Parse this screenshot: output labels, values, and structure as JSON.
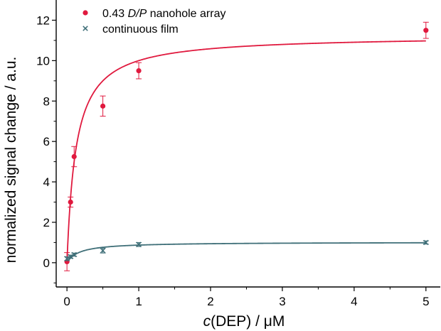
{
  "chart_data": {
    "type": "scatter",
    "title": "",
    "xlabel_prefix": "c",
    "xlabel_suffix": "(DEP) / μM",
    "ylabel": "normalized signal change / a.u.",
    "xlim": [
      -0.15,
      5.2
    ],
    "ylim": [
      -1.2,
      13
    ],
    "xticks": [
      0,
      1,
      2,
      3,
      4,
      5
    ],
    "yticks": [
      0,
      2,
      4,
      6,
      8,
      10,
      12
    ],
    "legend_position": "top-left",
    "series": [
      {
        "name": "nanohole array",
        "name_prefix": "0.43 ",
        "name_italic": "D/P",
        "marker": "circle",
        "color": "#e0193e",
        "x": [
          0,
          0.05,
          0.1,
          0.5,
          1,
          5
        ],
        "y": [
          0.05,
          3.0,
          5.25,
          7.75,
          9.5,
          11.5
        ],
        "err": [
          0.45,
          0.25,
          0.5,
          0.5,
          0.4,
          0.4
        ],
        "fit": {
          "model": "langmuir",
          "ymax": 11.25,
          "k": 0.125
        }
      },
      {
        "name": "continuous film",
        "name_prefix": "",
        "name_italic": "",
        "marker": "x",
        "color": "#3f6f78",
        "x": [
          0,
          0.05,
          0.1,
          0.5,
          1,
          5
        ],
        "y": [
          0.2,
          0.3,
          0.4,
          0.6,
          0.9,
          1.0
        ],
        "err": [
          0.1,
          0.08,
          0.08,
          0.12,
          0.1,
          0.08
        ],
        "fit": {
          "model": "langmuir",
          "ymax": 1.02,
          "k": 0.17
        }
      }
    ]
  }
}
